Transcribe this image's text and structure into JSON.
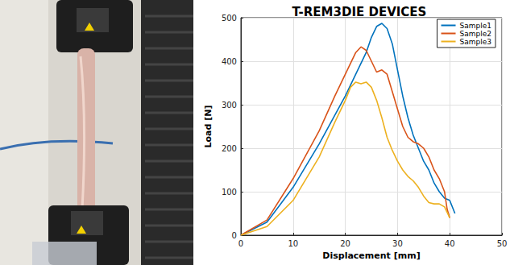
{
  "chart_data": {
    "type": "line",
    "title": "T-REM3DIE DEVICES",
    "x_label": "Displacement [mm]",
    "y_label": "Load [N]",
    "xlim": [
      0,
      50
    ],
    "xticks": [
      0,
      10,
      20,
      30,
      40,
      50
    ],
    "ylim": [
      0,
      500
    ],
    "yticks": [
      0,
      100,
      200,
      300,
      400,
      500
    ],
    "grid": true,
    "legend": "upper right",
    "series": [
      {
        "name": "Sample1",
        "color": "#0072BD",
        "x": [
          0,
          5,
          10,
          15,
          20,
          22,
          24,
          25,
          26,
          27,
          28,
          29,
          30,
          31,
          32,
          33,
          34,
          35,
          36,
          37,
          38,
          39,
          40,
          41
        ],
        "values": [
          0,
          30,
          110,
          210,
          320,
          370,
          420,
          455,
          480,
          487,
          475,
          440,
          380,
          320,
          270,
          230,
          200,
          170,
          150,
          120,
          100,
          85,
          80,
          50
        ]
      },
      {
        "name": "Sample2",
        "color": "#D95319",
        "x": [
          0,
          5,
          10,
          15,
          18,
          20,
          21,
          22,
          23,
          24,
          25,
          26,
          27,
          28,
          29,
          30,
          31,
          32,
          33,
          34,
          35,
          36,
          37,
          38,
          39,
          39.5,
          40
        ],
        "values": [
          0,
          35,
          130,
          240,
          320,
          370,
          395,
          420,
          433,
          425,
          400,
          375,
          380,
          370,
          330,
          290,
          250,
          225,
          215,
          210,
          200,
          180,
          150,
          130,
          100,
          60,
          40
        ]
      },
      {
        "name": "Sample3",
        "color": "#EDB120",
        "x": [
          0,
          5,
          10,
          15,
          18,
          20,
          21,
          22,
          23,
          24,
          25,
          26,
          27,
          28,
          29,
          30,
          31,
          32,
          33,
          34,
          35,
          36,
          37,
          38,
          39,
          40
        ],
        "values": [
          0,
          20,
          80,
          180,
          260,
          310,
          340,
          352,
          348,
          352,
          340,
          310,
          270,
          225,
          195,
          170,
          150,
          135,
          125,
          110,
          90,
          75,
          72,
          72,
          65,
          40
        ]
      }
    ]
  }
}
